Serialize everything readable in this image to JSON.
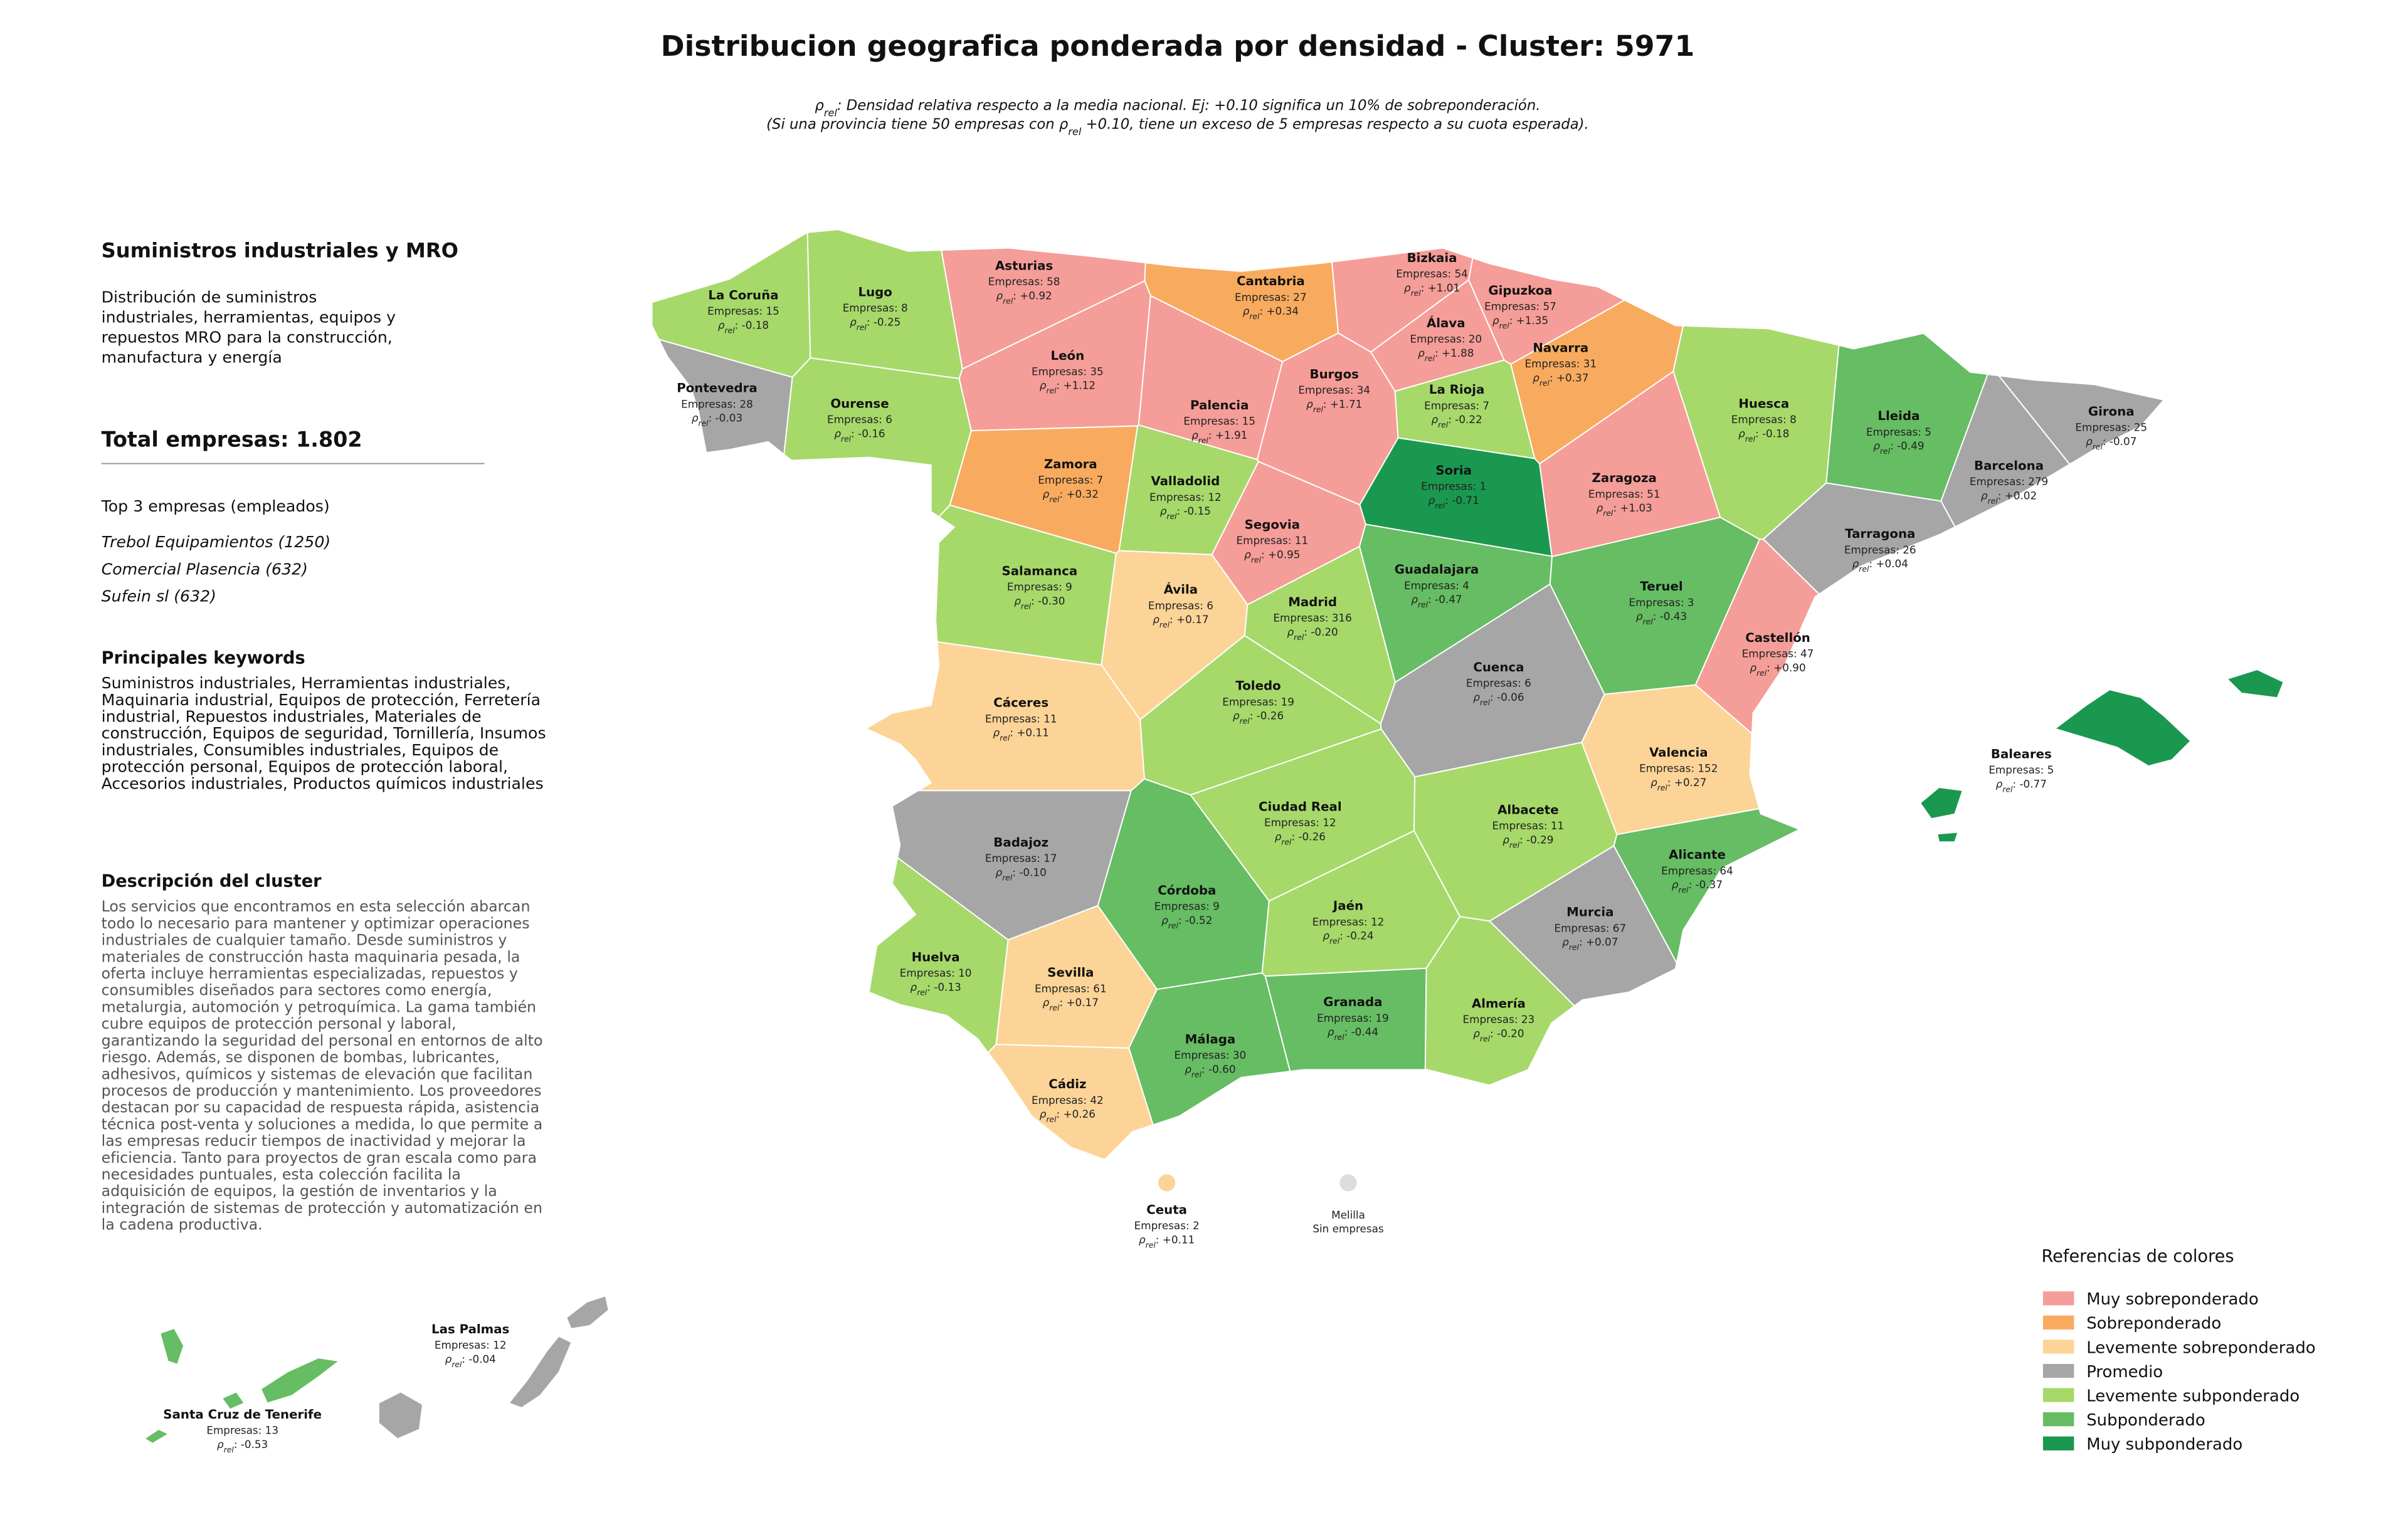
{
  "header": {
    "title": "Distribucion geografica ponderada por densidad - Cluster: 5971",
    "note_lines": [
      [
        "ρ",
        "rel",
        ": Densidad relativa respecto a la media nacional. Ej: +0.10 significa un 10% de sobreponderación."
      ],
      [
        "(Si una provincia tiene 50 empresas con ρ",
        "rel",
        " +0.10, tiene un exceso de 5 empresas respecto a su cuota esperada)."
      ]
    ]
  },
  "sidebar": {
    "heading": "Suministros industriales y MRO",
    "summary_lines": [
      "Distribución de suministros",
      "industriales, herramientas, equipos y",
      "repuestos MRO para la construcción,",
      "manufactura y energía"
    ],
    "total": "Total empresas: 1.802",
    "top_title": "Top 3 empresas (empleados)",
    "top_companies": [
      "Trebol Equipamientos (1250)",
      "Comercial Plasencia (632)",
      "Sufein sl (632)"
    ],
    "keywords_title": "Principales keywords",
    "keywords_lines": [
      "Suministros industriales, Herramientas industriales,",
      "Maquinaria industrial, Equipos de protección, Ferretería",
      "industrial, Repuestos industriales, Materiales de",
      "construcción, Equipos de seguridad, Tornillería, Insumos",
      "industriales, Consumibles industriales, Equipos de",
      "protección personal, Equipos de protección laboral,",
      "Accesorios industriales, Productos químicos industriales"
    ],
    "description_title": "Descripción del cluster",
    "description_lines": [
      "Los servicios que encontramos en esta selección abarcan",
      "todo lo necesario para mantener y optimizar operaciones",
      "industriales de cualquier tamaño. Desde suministros y",
      "materiales de construcción hasta maquinaria pesada, la",
      "oferta incluye herramientas especializadas, repuestos y",
      "consumibles diseñados para sectores como energía,",
      "metalurgia, automoción y petroquímica. La gama también",
      "cubre equipos de protección personal y laboral,",
      "garantizando la seguridad del personal en entornos de alto",
      "riesgo. Además, se disponen de bombas, lubricantes,",
      "adhesivos, químicos y sistemas de elevación que facilitan",
      "procesos de producción y mantenimiento. Los proveedores",
      "destacan por su capacidad de respuesta rápida, asistencia",
      "técnica post-venta y soluciones a medida, lo que permite a",
      "las empresas reducir tiempos de inactividad y mejorar la",
      "eficiencia. Tanto para proyectos de gran escala como para",
      "necesidades puntuales, esta colección facilita la",
      "adquisición de equipos, la gestión de inventarios y la",
      "integración de sistemas de protección y automatización en",
      "la cadena productiva."
    ]
  },
  "rho_label": {
    "symbol": "ρ",
    "sub": "rel",
    "sep": ": "
  },
  "legend": {
    "title": "Referencias de colores",
    "items": [
      {
        "label": "Muy sobreponderado",
        "color": "#f59d98"
      },
      {
        "label": "Sobreponderado",
        "color": "#f8ab5e"
      },
      {
        "label": "Levemente sobreponderado",
        "color": "#fdd497"
      },
      {
        "label": "Promedio",
        "color": "#a6a6a6"
      },
      {
        "label": "Levemente subponderado",
        "color": "#a6d96a"
      },
      {
        "label": "Subponderado",
        "color": "#66bd63"
      },
      {
        "label": "Muy subponderado",
        "color": "#1a9850"
      }
    ]
  },
  "provinces": [
    {
      "name": "La Coruña",
      "empresas": "Empresas: 15",
      "rho": "-0.18",
      "category": 4
    },
    {
      "name": "Lugo",
      "empresas": "Empresas: 8",
      "rho": "-0.25",
      "category": 4
    },
    {
      "name": "Pontevedra",
      "empresas": "Empresas: 28",
      "rho": "-0.03",
      "category": 3
    },
    {
      "name": "Ourense",
      "empresas": "Empresas: 6",
      "rho": "-0.16",
      "category": 4
    },
    {
      "name": "Asturias",
      "empresas": "Empresas: 58",
      "rho": "+0.92",
      "category": 0
    },
    {
      "name": "Cantabria",
      "empresas": "Empresas: 27",
      "rho": "+0.34",
      "category": 1
    },
    {
      "name": "Bizkaia",
      "empresas": "Empresas: 54",
      "rho": "+1.01",
      "category": 0
    },
    {
      "name": "Gipuzkoa",
      "empresas": "Empresas: 57",
      "rho": "+1.35",
      "category": 0
    },
    {
      "name": "Álava",
      "empresas": "Empresas: 20",
      "rho": "+1.88",
      "category": 0
    },
    {
      "name": "Navarra",
      "empresas": "Empresas: 31",
      "rho": "+0.37",
      "category": 1
    },
    {
      "name": "León",
      "empresas": "Empresas: 35",
      "rho": "+1.12",
      "category": 0
    },
    {
      "name": "Palencia",
      "empresas": "Empresas: 15",
      "rho": "+1.91",
      "category": 0
    },
    {
      "name": "Burgos",
      "empresas": "Empresas: 34",
      "rho": "+1.71",
      "category": 0
    },
    {
      "name": "La Rioja",
      "empresas": "Empresas: 7",
      "rho": "-0.22",
      "category": 4
    },
    {
      "name": "Huesca",
      "empresas": "Empresas: 8",
      "rho": "-0.18",
      "category": 4
    },
    {
      "name": "Lleida",
      "empresas": "Empresas: 5",
      "rho": "-0.49",
      "category": 5
    },
    {
      "name": "Girona",
      "empresas": "Empresas: 25",
      "rho": "-0.07",
      "category": 3
    },
    {
      "name": "Barcelona",
      "empresas": "Empresas: 279",
      "rho": "+0.02",
      "category": 3
    },
    {
      "name": "Tarragona",
      "empresas": "Empresas: 26",
      "rho": "+0.04",
      "category": 3
    },
    {
      "name": "Zamora",
      "empresas": "Empresas: 7",
      "rho": "+0.32",
      "category": 1
    },
    {
      "name": "Valladolid",
      "empresas": "Empresas: 12",
      "rho": "-0.15",
      "category": 4
    },
    {
      "name": "Soria",
      "empresas": "Empresas: 1",
      "rho": "-0.71",
      "category": 6
    },
    {
      "name": "Zaragoza",
      "empresas": "Empresas: 51",
      "rho": "+1.03",
      "category": 0
    },
    {
      "name": "Segovia",
      "empresas": "Empresas: 11",
      "rho": "+0.95",
      "category": 0
    },
    {
      "name": "Salamanca",
      "empresas": "Empresas: 9",
      "rho": "-0.30",
      "category": 4
    },
    {
      "name": "Ávila",
      "empresas": "Empresas: 6",
      "rho": "+0.17",
      "category": 2
    },
    {
      "name": "Madrid",
      "empresas": "Empresas: 316",
      "rho": "-0.20",
      "category": 4
    },
    {
      "name": "Guadalajara",
      "empresas": "Empresas: 4",
      "rho": "-0.47",
      "category": 5
    },
    {
      "name": "Teruel",
      "empresas": "Empresas: 3",
      "rho": "-0.43",
      "category": 5
    },
    {
      "name": "Castellón",
      "empresas": "Empresas: 47",
      "rho": "+0.90",
      "category": 0
    },
    {
      "name": "Cáceres",
      "empresas": "Empresas: 11",
      "rho": "+0.11",
      "category": 2
    },
    {
      "name": "Toledo",
      "empresas": "Empresas: 19",
      "rho": "-0.26",
      "category": 4
    },
    {
      "name": "Cuenca",
      "empresas": "Empresas: 6",
      "rho": "-0.06",
      "category": 3
    },
    {
      "name": "Valencia",
      "empresas": "Empresas: 152",
      "rho": "+0.27",
      "category": 2
    },
    {
      "name": "Badajoz",
      "empresas": "Empresas: 17",
      "rho": "-0.10",
      "category": 3
    },
    {
      "name": "Ciudad Real",
      "empresas": "Empresas: 12",
      "rho": "-0.26",
      "category": 4
    },
    {
      "name": "Albacete",
      "empresas": "Empresas: 11",
      "rho": "-0.29",
      "category": 4
    },
    {
      "name": "Alicante",
      "empresas": "Empresas: 64",
      "rho": "-0.37",
      "category": 5
    },
    {
      "name": "Córdoba",
      "empresas": "Empresas: 9",
      "rho": "-0.52",
      "category": 5
    },
    {
      "name": "Jaén",
      "empresas": "Empresas: 12",
      "rho": "-0.24",
      "category": 4
    },
    {
      "name": "Murcia",
      "empresas": "Empresas: 67",
      "rho": "+0.07",
      "category": 3
    },
    {
      "name": "Huelva",
      "empresas": "Empresas: 10",
      "rho": "-0.13",
      "category": 4
    },
    {
      "name": "Sevilla",
      "empresas": "Empresas: 61",
      "rho": "+0.17",
      "category": 2
    },
    {
      "name": "Granada",
      "empresas": "Empresas: 19",
      "rho": "-0.44",
      "category": 5
    },
    {
      "name": "Almería",
      "empresas": "Empresas: 23",
      "rho": "-0.20",
      "category": 4
    },
    {
      "name": "Málaga",
      "empresas": "Empresas: 30",
      "rho": "-0.60",
      "category": 5
    },
    {
      "name": "Cádiz",
      "empresas": "Empresas: 42",
      "rho": "+0.26",
      "category": 2
    },
    {
      "name": "Baleares",
      "empresas": "Empresas: 5",
      "rho": "-0.77",
      "category": 6
    },
    {
      "name": "Las Palmas",
      "empresas": "Empresas: 12",
      "rho": "-0.04",
      "category": 3
    },
    {
      "name": "Santa Cruz de Tenerife",
      "empresas": "Empresas: 13",
      "rho": "-0.53",
      "category": 5
    },
    {
      "name": "Ceuta",
      "empresas": "Empresas: 2",
      "rho": "+0.11",
      "category": 2
    },
    {
      "name": "Melilla",
      "note": "Sin empresas"
    }
  ]
}
